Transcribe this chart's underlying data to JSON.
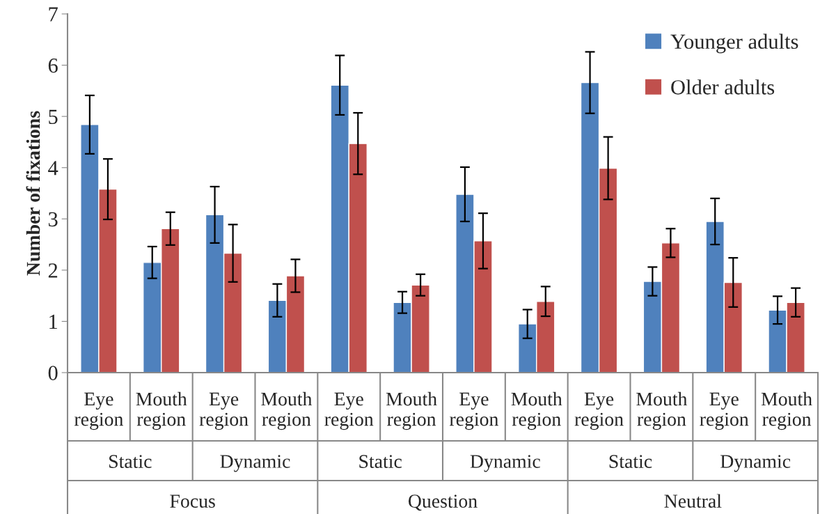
{
  "chart_data": {
    "type": "bar",
    "ylabel": "Number of fixations",
    "categories": [
      "Eye region",
      "Mouth region",
      "Eye region",
      "Mouth region",
      "Eye region",
      "Mouth region",
      "Eye region",
      "Mouth region",
      "Eye region",
      "Mouth region",
      "Eye region",
      "Mouth region"
    ],
    "series": [
      {
        "name": "Younger adults",
        "color": "#4f81bd",
        "values": [
          4.84,
          2.15,
          3.08,
          1.41,
          5.61,
          1.37,
          3.48,
          0.95,
          5.66,
          1.78,
          2.95,
          1.22
        ],
        "errors": [
          0.57,
          0.31,
          0.55,
          0.32,
          0.58,
          0.21,
          0.53,
          0.28,
          0.6,
          0.28,
          0.45,
          0.27
        ]
      },
      {
        "name": "Older adults",
        "color": "#c0504d",
        "values": [
          3.58,
          2.81,
          2.33,
          1.89,
          4.47,
          1.71,
          2.57,
          1.39,
          3.99,
          2.53,
          1.76,
          1.37
        ],
        "errors": [
          0.59,
          0.32,
          0.56,
          0.32,
          0.6,
          0.21,
          0.54,
          0.29,
          0.61,
          0.28,
          0.48,
          0.28
        ]
      }
    ],
    "annotations": [
      "Static",
      "Dynamic",
      "Static",
      "Dynamic",
      "Static",
      "Dynamic",
      "Focus",
      "Question",
      "Neutral"
    ],
    "ylim": [
      0,
      7
    ],
    "yticks": [
      0,
      1,
      2,
      3,
      4,
      5,
      6,
      7
    ],
    "grid": false,
    "legend": "top right"
  }
}
